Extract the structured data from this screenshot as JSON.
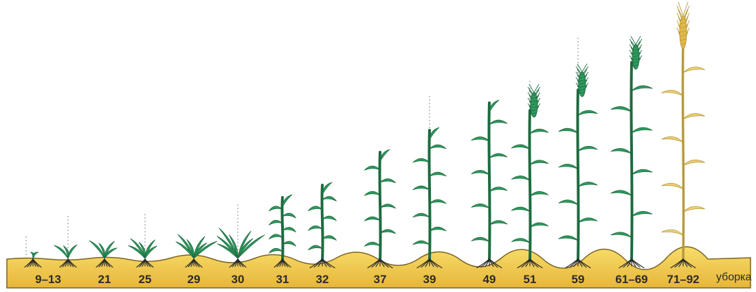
{
  "stages": [
    {
      "label": "9–13"
    },
    {
      "label": "21"
    },
    {
      "label": "25"
    },
    {
      "label": "29"
    },
    {
      "label": "30"
    },
    {
      "label": "31"
    },
    {
      "label": "32"
    },
    {
      "label": "37"
    },
    {
      "label": "39"
    },
    {
      "label": "49"
    },
    {
      "label": "51"
    },
    {
      "label": "59"
    },
    {
      "label": "61–69"
    },
    {
      "label": "71–92"
    }
  ],
  "harvest_label": "уборка",
  "colors": {
    "soil_top": "#f7dd6a",
    "soil_bottom": "#e7b63a",
    "soil_edge": "#7a6320",
    "leaf": "#2f9a5e",
    "leaf_dark": "#1d6b40",
    "ripe": "#ecd178",
    "ripe_dark": "#b89a3b",
    "root": "#2a2a2a"
  }
}
